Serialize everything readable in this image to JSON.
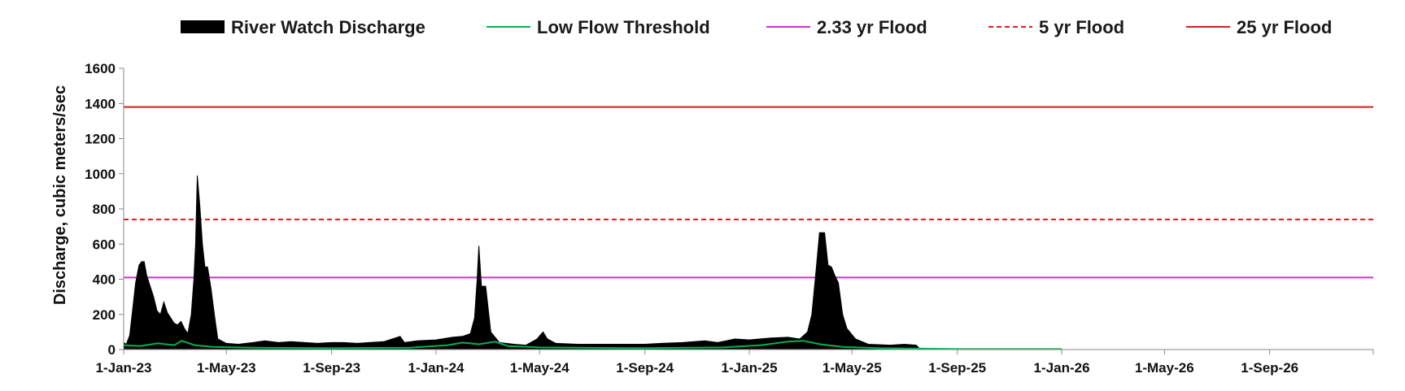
{
  "chart_data": {
    "type": "area",
    "title": "",
    "ylabel": "Discharge, cubic meters/sec",
    "xlabel": "",
    "ylim": [
      0,
      1600
    ],
    "xlim": [
      "2023-01-01",
      "2026-12-31"
    ],
    "grid": false,
    "legend_position": "top",
    "y_ticks": [
      {
        "value": 0,
        "label": "0"
      },
      {
        "value": 200,
        "label": "200"
      },
      {
        "value": 400,
        "label": "400"
      },
      {
        "value": 600,
        "label": "600"
      },
      {
        "value": 800,
        "label": "800"
      },
      {
        "value": 1000,
        "label": "1000"
      },
      {
        "value": 1200,
        "label": "1200"
      },
      {
        "value": 1400,
        "label": "1400"
      },
      {
        "value": 1600,
        "label": "1600"
      }
    ],
    "x_ticks": [
      {
        "date": "2023-01-01",
        "label": "1-Jan-23"
      },
      {
        "date": "2023-05-01",
        "label": "1-May-23"
      },
      {
        "date": "2023-09-01",
        "label": "1-Sep-23"
      },
      {
        "date": "2024-01-01",
        "label": "1-Jan-24"
      },
      {
        "date": "2024-05-01",
        "label": "1-May-24"
      },
      {
        "date": "2024-09-01",
        "label": "1-Sep-24"
      },
      {
        "date": "2025-01-01",
        "label": "1-Jan-25"
      },
      {
        "date": "2025-05-01",
        "label": "1-May-25"
      },
      {
        "date": "2025-09-01",
        "label": "1-Sep-25"
      },
      {
        "date": "2026-01-01",
        "label": "1-Jan-26"
      },
      {
        "date": "2026-05-01",
        "label": "1-May-26"
      },
      {
        "date": "2026-09-01",
        "label": "1-Sep-26"
      }
    ],
    "legend": [
      {
        "name": "River Watch Discharge",
        "color": "#000000",
        "style": "area"
      },
      {
        "name": "Low Flow Threshold",
        "color": "#00b050",
        "style": "line"
      },
      {
        "name": "2.33 yr Flood",
        "color": "#cc33cc",
        "style": "line"
      },
      {
        "name": "5 yr Flood",
        "color": "#e02020",
        "style": "dashed"
      },
      {
        "name": "25 yr Flood",
        "color": "#d02020",
        "style": "line"
      }
    ],
    "thresholds": [
      {
        "name": "2.33 yr Flood",
        "value": 410,
        "color": "#cc33cc",
        "dash": false
      },
      {
        "name": "5 yr Flood",
        "value": 740,
        "color": "#e02020",
        "dash": true
      },
      {
        "name": "25 yr Flood",
        "value": 1380,
        "color": "#d02020",
        "dash": false
      }
    ],
    "series": [
      {
        "name": "River Watch Discharge",
        "color": "#000000",
        "points": [
          [
            "2023-01-01",
            40
          ],
          [
            "2023-01-04",
            30
          ],
          [
            "2023-01-08",
            80
          ],
          [
            "2023-01-12",
            250
          ],
          [
            "2023-01-15",
            380
          ],
          [
            "2023-01-19",
            480
          ],
          [
            "2023-01-22",
            500
          ],
          [
            "2023-01-25",
            500
          ],
          [
            "2023-01-28",
            420
          ],
          [
            "2023-02-01",
            360
          ],
          [
            "2023-02-05",
            300
          ],
          [
            "2023-02-09",
            220
          ],
          [
            "2023-02-13",
            200
          ],
          [
            "2023-02-17",
            270
          ],
          [
            "2023-02-21",
            210
          ],
          [
            "2023-02-25",
            180
          ],
          [
            "2023-03-01",
            150
          ],
          [
            "2023-03-05",
            140
          ],
          [
            "2023-03-09",
            160
          ],
          [
            "2023-03-13",
            120
          ],
          [
            "2023-03-17",
            90
          ],
          [
            "2023-03-21",
            200
          ],
          [
            "2023-03-24",
            400
          ],
          [
            "2023-03-26",
            600
          ],
          [
            "2023-03-28",
            990
          ],
          [
            "2023-03-31",
            820
          ],
          [
            "2023-04-03",
            600
          ],
          [
            "2023-04-06",
            470
          ],
          [
            "2023-04-09",
            470
          ],
          [
            "2023-04-13",
            350
          ],
          [
            "2023-04-17",
            200
          ],
          [
            "2023-04-21",
            60
          ],
          [
            "2023-05-01",
            35
          ],
          [
            "2023-05-15",
            30
          ],
          [
            "2023-06-01",
            40
          ],
          [
            "2023-06-15",
            50
          ],
          [
            "2023-07-01",
            40
          ],
          [
            "2023-07-15",
            45
          ],
          [
            "2023-08-01",
            40
          ],
          [
            "2023-08-15",
            35
          ],
          [
            "2023-09-01",
            40
          ],
          [
            "2023-09-15",
            40
          ],
          [
            "2023-10-01",
            35
          ],
          [
            "2023-10-15",
            40
          ],
          [
            "2023-11-01",
            45
          ],
          [
            "2023-11-20",
            75
          ],
          [
            "2023-11-25",
            40
          ],
          [
            "2023-12-10",
            50
          ],
          [
            "2024-01-01",
            55
          ],
          [
            "2024-01-20",
            70
          ],
          [
            "2024-02-01",
            75
          ],
          [
            "2024-02-10",
            90
          ],
          [
            "2024-02-15",
            180
          ],
          [
            "2024-02-18",
            400
          ],
          [
            "2024-02-20",
            590
          ],
          [
            "2024-02-23",
            360
          ],
          [
            "2024-02-28",
            360
          ],
          [
            "2024-03-05",
            100
          ],
          [
            "2024-03-15",
            40
          ],
          [
            "2024-04-01",
            30
          ],
          [
            "2024-04-15",
            25
          ],
          [
            "2024-04-28",
            60
          ],
          [
            "2024-05-05",
            100
          ],
          [
            "2024-05-10",
            60
          ],
          [
            "2024-05-20",
            35
          ],
          [
            "2024-06-15",
            30
          ],
          [
            "2024-07-15",
            30
          ],
          [
            "2024-08-15",
            30
          ],
          [
            "2024-09-01",
            30
          ],
          [
            "2024-09-20",
            35
          ],
          [
            "2024-10-15",
            40
          ],
          [
            "2024-11-10",
            50
          ],
          [
            "2024-11-25",
            40
          ],
          [
            "2024-12-15",
            60
          ],
          [
            "2025-01-01",
            55
          ],
          [
            "2025-01-25",
            65
          ],
          [
            "2025-02-15",
            70
          ],
          [
            "2025-03-01",
            60
          ],
          [
            "2025-03-10",
            100
          ],
          [
            "2025-03-15",
            200
          ],
          [
            "2025-03-20",
            450
          ],
          [
            "2025-03-24",
            665
          ],
          [
            "2025-03-30",
            665
          ],
          [
            "2025-04-03",
            480
          ],
          [
            "2025-04-07",
            470
          ],
          [
            "2025-04-11",
            420
          ],
          [
            "2025-04-15",
            380
          ],
          [
            "2025-04-20",
            200
          ],
          [
            "2025-04-25",
            120
          ],
          [
            "2025-05-05",
            60
          ],
          [
            "2025-05-20",
            30
          ],
          [
            "2025-06-15",
            25
          ],
          [
            "2025-07-01",
            30
          ],
          [
            "2025-07-15",
            25
          ],
          [
            "2025-07-20",
            0
          ]
        ]
      },
      {
        "name": "Low Flow Threshold",
        "color": "#00b050",
        "points": [
          [
            "2023-01-01",
            25
          ],
          [
            "2023-01-20",
            20
          ],
          [
            "2023-02-10",
            35
          ],
          [
            "2023-03-01",
            25
          ],
          [
            "2023-03-10",
            50
          ],
          [
            "2023-03-25",
            25
          ],
          [
            "2023-04-15",
            15
          ],
          [
            "2023-06-01",
            10
          ],
          [
            "2023-09-01",
            8
          ],
          [
            "2023-12-01",
            10
          ],
          [
            "2024-01-15",
            25
          ],
          [
            "2024-02-01",
            40
          ],
          [
            "2024-02-20",
            30
          ],
          [
            "2024-03-10",
            45
          ],
          [
            "2024-03-25",
            20
          ],
          [
            "2024-05-01",
            12
          ],
          [
            "2024-09-01",
            8
          ],
          [
            "2024-12-01",
            12
          ],
          [
            "2025-01-15",
            25
          ],
          [
            "2025-02-15",
            45
          ],
          [
            "2025-03-05",
            50
          ],
          [
            "2025-03-25",
            30
          ],
          [
            "2025-04-20",
            15
          ],
          [
            "2025-06-01",
            8
          ],
          [
            "2025-09-01",
            3
          ],
          [
            "2026-01-01",
            3
          ]
        ]
      }
    ]
  }
}
